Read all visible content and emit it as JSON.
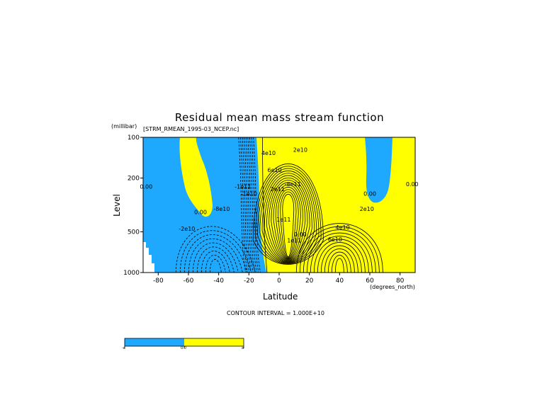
{
  "chart_data": {
    "type": "contour",
    "title": "Residual mean mass stream function",
    "subtitle": "[STRM_RMEAN_1995-03_NCEP.nc]",
    "xlabel": "Latitude",
    "x_units": "(degrees_north)",
    "ylabel": "Level",
    "y_units": "(millibar)",
    "xlim": [
      -90,
      90
    ],
    "ylim": [
      1000,
      100
    ],
    "y_scale": "log (pressure)",
    "x_ticks": [
      -80,
      -60,
      -40,
      -20,
      0,
      20,
      40,
      60,
      80
    ],
    "x_tick_labels": [
      "-80",
      "-60",
      "-40",
      "-20",
      "0",
      "20",
      "40",
      "60",
      "80"
    ],
    "y_ticks": [
      100,
      200,
      500,
      1000
    ],
    "y_tick_labels": [
      "100",
      "200",
      "500",
      "1000"
    ],
    "contour_interval_text": "CONTOUR INTERVAL = 1.000E+10",
    "contour_labels": [
      {
        "text": "0.00",
        "lat": -88,
        "p": 240
      },
      {
        "text": "-2e10",
        "lat": -61,
        "p": 490
      },
      {
        "text": "0.00",
        "lat": -52,
        "p": 370
      },
      {
        "text": "-8e10",
        "lat": -38,
        "p": 350
      },
      {
        "text": "-1e11",
        "lat": -24,
        "p": 240
      },
      {
        "text": "-1e10",
        "lat": -20,
        "p": 270
      },
      {
        "text": "4e10",
        "lat": -7,
        "p": 135
      },
      {
        "text": "6e10",
        "lat": -3,
        "p": 180
      },
      {
        "text": "2e10",
        "lat": 14,
        "p": 128
      },
      {
        "text": "2e11",
        "lat": -1,
        "p": 250
      },
      {
        "text": "1e11",
        "lat": 3,
        "p": 420
      },
      {
        "text": "-8e11",
        "lat": 9,
        "p": 230
      },
      {
        "text": "1e11",
        "lat": 10,
        "p": 600
      },
      {
        "text": "0.00",
        "lat": 14,
        "p": 540
      },
      {
        "text": "6e10",
        "lat": 37,
        "p": 590
      },
      {
        "text": "4e10",
        "lat": 42,
        "p": 480
      },
      {
        "text": "2e10",
        "lat": 58,
        "p": 350
      },
      {
        "text": "0.00",
        "lat": 60,
        "p": 270
      },
      {
        "text": "0.00",
        "lat": 88,
        "p": 230
      }
    ],
    "fill_regions": [
      {
        "sign": "negative",
        "color": "#1ea9ff",
        "description_latitudes": [
          -90,
          -10
        ]
      },
      {
        "sign": "positive",
        "color": "#ffff00",
        "description_latitudes": [
          -12,
          90
        ]
      }
    ],
    "colorbar": {
      "colors": [
        "#1ea9ff",
        "#ffff00"
      ],
      "labels": [
        "-a",
        "0.0",
        "a"
      ]
    }
  },
  "colors": {
    "negative": "#1ea9ff",
    "positive": "#ffff00",
    "background": "#ffffff",
    "line": "#000000"
  }
}
